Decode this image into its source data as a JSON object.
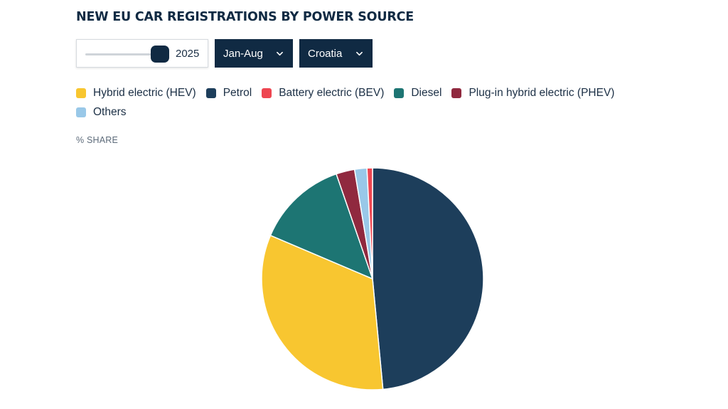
{
  "header": {
    "title": "NEW EU CAR REGISTRATIONS BY POWER SOURCE"
  },
  "controls": {
    "year": "2025",
    "period": "Jan-Aug",
    "country": "Croatia"
  },
  "colors": {
    "HEV": "#f8c630",
    "Petrol": "#1d3e5b",
    "BEV": "#ee4651",
    "Diesel": "#1d7573",
    "PHEV": "#90293f",
    "Others": "#99c8e8",
    "dark": "#102a43"
  },
  "chart_data": {
    "type": "pie",
    "title": "NEW EU CAR REGISTRATIONS BY POWER SOURCE",
    "unit_label": "% SHARE",
    "legend": [
      "Hybrid electric (HEV)",
      "Petrol",
      "Battery electric (BEV)",
      "Diesel",
      "Plug-in hybrid electric (PHEV)",
      "Others"
    ],
    "slices": [
      {
        "name": "Petrol",
        "value": 48.5,
        "color": "#1d3e5b"
      },
      {
        "name": "Hybrid electric (HEV)",
        "value": 32.9,
        "color": "#f8c630"
      },
      {
        "name": "Diesel",
        "value": 13.3,
        "color": "#1d7573"
      },
      {
        "name": "Plug-in hybrid electric (PHEV)",
        "value": 2.7,
        "color": "#90293f"
      },
      {
        "name": "Others",
        "value": 1.8,
        "color": "#99c8e8"
      },
      {
        "name": "Battery electric (BEV)",
        "value": 0.8,
        "color": "#ee4651"
      }
    ],
    "start_angle_deg": 0,
    "direction": "clockwise",
    "legend_placement": "top"
  }
}
